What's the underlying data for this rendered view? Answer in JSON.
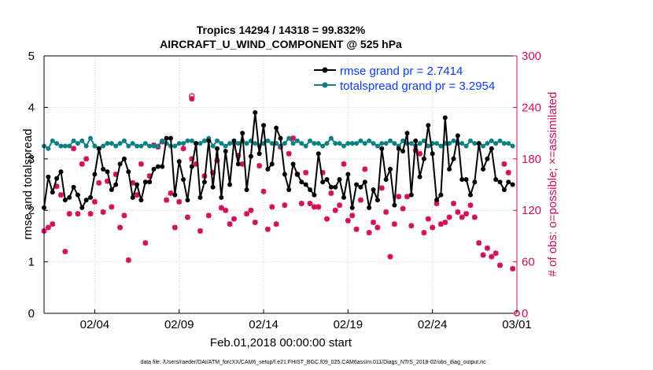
{
  "chart_data": {
    "type": "line",
    "title_line1": "Tropics 14294 / 14318 = 99.832%",
    "title_line2": "AIRCRAFT_U_WIND_COMPONENT @ 525 hPa",
    "ylabel_left": "rmse and totalspread",
    "ylabel_right": "# of obs: o=possible; ×=assimilated",
    "xlabel": "Feb.01,2018 00:00:00 start",
    "footnote": "data file: /Users/raeder/DAI/ATM_forcXX/CAM6_setup/f.e21.FHIST_BGC.f09_025.CAM6assim.011/Diags_NTrS_2018-02/obs_diag_output.nc",
    "xlim": [
      0.5,
      28.5
    ],
    "ylim_left": [
      0,
      5
    ],
    "ylim_right": [
      0,
      300
    ],
    "yticks_left": [
      "0",
      "1",
      "2",
      "3",
      "4",
      "5"
    ],
    "yticks_right": [
      "0",
      "60",
      "120",
      "180",
      "240",
      "300"
    ],
    "xticks": [
      {
        "x": 3.5,
        "label": "02/04"
      },
      {
        "x": 8.5,
        "label": "02/09"
      },
      {
        "x": 13.5,
        "label": "02/14"
      },
      {
        "x": 18.5,
        "label": "02/19"
      },
      {
        "x": 23.5,
        "label": "02/24"
      },
      {
        "x": 28.5,
        "label": "03/01"
      }
    ],
    "colors": {
      "rmse": "#000000",
      "spread": "#0f8080",
      "obs": "#d0105a",
      "right_axis": "#d0105a",
      "legend_text": "#0a3cf0"
    },
    "series": [
      {
        "name": "rmse grand pr = 2.7414",
        "color": "#000000",
        "x": [
          0.5,
          0.75,
          1.0,
          1.25,
          1.5,
          1.75,
          2.0,
          2.25,
          2.5,
          2.75,
          3.0,
          3.25,
          3.5,
          3.75,
          4.0,
          4.25,
          4.5,
          4.75,
          5.0,
          5.25,
          5.5,
          5.75,
          6.0,
          6.25,
          6.5,
          6.75,
          7.0,
          7.25,
          7.5,
          7.75,
          8.0,
          8.25,
          8.5,
          8.75,
          9.0,
          9.25,
          9.5,
          9.75,
          10.0,
          10.25,
          10.5,
          10.75,
          11.0,
          11.25,
          11.5,
          11.75,
          12.0,
          12.25,
          12.5,
          12.75,
          13.0,
          13.25,
          13.5,
          13.75,
          14.0,
          14.25,
          14.5,
          14.75,
          15.0,
          15.25,
          15.5,
          15.75,
          16.0,
          16.25,
          16.5,
          16.75,
          17.0,
          17.25,
          17.5,
          17.75,
          18.0,
          18.25,
          18.5,
          18.75,
          19.0,
          19.25,
          19.5,
          19.75,
          20.0,
          20.25,
          20.5,
          20.75,
          21.0,
          21.25,
          21.5,
          21.75,
          22.0,
          22.25,
          22.5,
          22.75,
          23.0,
          23.25,
          23.5,
          23.75,
          24.0,
          24.25,
          24.5,
          24.75,
          25.0,
          25.25,
          25.5,
          25.75,
          26.0,
          26.25,
          26.5,
          26.75,
          27.0,
          27.25,
          27.5,
          27.75,
          28.0,
          28.25
        ],
        "values": [
          2.05,
          2.65,
          2.35,
          2.62,
          2.75,
          2.2,
          2.25,
          2.45,
          2.3,
          2.05,
          2.2,
          2.25,
          2.7,
          3.2,
          2.8,
          2.75,
          2.4,
          2.5,
          2.9,
          3.0,
          2.75,
          2.25,
          2.5,
          2.2,
          2.55,
          2.55,
          2.8,
          2.85,
          2.85,
          3.4,
          3.4,
          2.3,
          2.95,
          2.6,
          2.2,
          2.85,
          3.3,
          2.25,
          2.55,
          3.35,
          2.45,
          3.2,
          2.25,
          3.15,
          2.5,
          3.35,
          2.9,
          3.5,
          2.4,
          3.05,
          3.9,
          3.1,
          3.65,
          2.8,
          2.9,
          3.6,
          3.4,
          2.7,
          2.4,
          2.9,
          2.7,
          2.55,
          2.5,
          2.4,
          2.3,
          3.1,
          2.55,
          2.6,
          2.45,
          2.45,
          2.6,
          2.25,
          2.7,
          2.05,
          2.5,
          2.45,
          2.55,
          2.05,
          2.4,
          2.2,
          3.2,
          2.6,
          2.8,
          2.1,
          3.2,
          3.15,
          3.5,
          2.3,
          3.35,
          2.65,
          3.0,
          3.65,
          3.1,
          2.2,
          2.3,
          3.8,
          2.8,
          3.0,
          3.45,
          2.6,
          2.6,
          2.3,
          2.55,
          3.3,
          2.8,
          3.0,
          3.2,
          2.6,
          2.55,
          2.4,
          2.55,
          2.5
        ]
      },
      {
        "name": "totalspread grand pr = 3.2954",
        "color": "#0f8080",
        "x": [
          0.5,
          0.75,
          1.0,
          1.25,
          1.5,
          1.75,
          2.0,
          2.25,
          2.5,
          2.75,
          3.0,
          3.25,
          3.5,
          3.75,
          4.0,
          4.25,
          4.5,
          4.75,
          5.0,
          5.25,
          5.5,
          5.75,
          6.0,
          6.25,
          6.5,
          6.75,
          7.0,
          7.25,
          7.5,
          7.75,
          8.0,
          8.25,
          8.5,
          8.75,
          9.0,
          9.25,
          9.5,
          9.75,
          10.0,
          10.25,
          10.5,
          10.75,
          11.0,
          11.25,
          11.5,
          11.75,
          12.0,
          12.25,
          12.5,
          12.75,
          13.0,
          13.25,
          13.5,
          13.75,
          14.0,
          14.25,
          14.5,
          14.75,
          15.0,
          15.25,
          15.5,
          15.75,
          16.0,
          16.25,
          16.5,
          16.75,
          17.0,
          17.25,
          17.5,
          17.75,
          18.0,
          18.25,
          18.5,
          18.75,
          19.0,
          19.25,
          19.5,
          19.75,
          20.0,
          20.25,
          20.5,
          20.75,
          21.0,
          21.25,
          21.5,
          21.75,
          22.0,
          22.25,
          22.5,
          22.75,
          23.0,
          23.25,
          23.5,
          23.75,
          24.0,
          24.25,
          24.5,
          24.75,
          25.0,
          25.25,
          25.5,
          25.75,
          26.0,
          26.25,
          26.5,
          26.75,
          27.0,
          27.25,
          27.5,
          27.75,
          28.0,
          28.25
        ],
        "values": [
          3.25,
          3.2,
          3.35,
          3.3,
          3.25,
          3.25,
          3.25,
          3.35,
          3.3,
          3.35,
          3.25,
          3.4,
          3.25,
          3.2,
          3.25,
          3.3,
          3.3,
          3.25,
          3.3,
          3.35,
          3.25,
          3.3,
          3.25,
          3.25,
          3.3,
          3.25,
          3.25,
          3.25,
          3.35,
          3.3,
          3.25,
          3.25,
          3.3,
          3.3,
          3.35,
          3.35,
          3.3,
          3.3,
          3.35,
          3.4,
          3.25,
          3.35,
          3.3,
          3.25,
          3.3,
          3.3,
          3.3,
          3.35,
          3.3,
          3.35,
          3.3,
          3.25,
          3.3,
          3.35,
          3.3,
          3.3,
          3.25,
          3.3,
          3.4,
          3.3,
          3.35,
          3.3,
          3.25,
          3.35,
          3.3,
          3.3,
          3.25,
          3.3,
          3.4,
          3.3,
          3.3,
          3.25,
          3.3,
          3.3,
          3.3,
          3.35,
          3.3,
          3.35,
          3.3,
          3.25,
          3.3,
          3.3,
          3.35,
          3.3,
          3.25,
          3.35,
          3.3,
          3.3,
          3.25,
          3.3,
          3.35,
          3.25,
          3.3,
          3.3,
          3.25,
          3.3,
          3.3,
          3.35,
          3.3,
          3.3,
          3.25,
          3.35,
          3.3,
          3.3,
          3.25,
          3.3,
          3.35,
          3.3,
          3.35,
          3.3,
          3.3,
          3.25
        ]
      }
    ],
    "obs_assimilated": {
      "name": "assimilated obs count",
      "color": "#d0105a",
      "x": [
        0.5,
        0.75,
        1.0,
        1.25,
        1.5,
        1.75,
        2.0,
        2.25,
        2.5,
        2.75,
        3.0,
        3.25,
        3.5,
        3.75,
        4.0,
        4.25,
        4.5,
        4.75,
        5.0,
        5.25,
        5.5,
        5.75,
        6.0,
        6.25,
        6.5,
        6.75,
        7.0,
        7.25,
        7.5,
        7.75,
        8.0,
        8.25,
        8.5,
        8.75,
        9.0,
        9.25,
        9.5,
        9.75,
        10.0,
        10.25,
        10.5,
        10.75,
        11.0,
        11.25,
        11.5,
        11.75,
        12.0,
        12.25,
        12.5,
        12.75,
        13.0,
        13.25,
        13.5,
        13.75,
        14.0,
        14.25,
        14.5,
        14.75,
        15.0,
        15.25,
        15.5,
        15.75,
        16.0,
        16.25,
        16.5,
        16.75,
        17.0,
        17.25,
        17.5,
        17.75,
        18.0,
        18.25,
        18.5,
        18.75,
        19.0,
        19.25,
        19.5,
        19.75,
        20.0,
        20.25,
        20.5,
        20.75,
        21.0,
        21.25,
        21.5,
        21.75,
        22.0,
        22.25,
        22.5,
        22.75,
        23.0,
        23.25,
        23.5,
        23.75,
        24.0,
        24.25,
        24.5,
        24.75,
        25.0,
        25.25,
        25.5,
        25.75,
        26.0,
        26.25,
        26.5,
        26.75,
        27.0,
        27.25,
        27.5,
        27.75,
        28.0,
        28.25
      ],
      "values": [
        96,
        100,
        104,
        148,
        138,
        72,
        116,
        192,
        116,
        174,
        180,
        116,
        130,
        152,
        118,
        154,
        124,
        162,
        100,
        114,
        62,
        152,
        138,
        174,
        82,
        160,
        196,
        194,
        200,
        132,
        140,
        100,
        130,
        192,
        112,
        180,
        174,
        96,
        160,
        114,
        164,
        178,
        123,
        120,
        104,
        110,
        184,
        174,
        116,
        120,
        106,
        172,
        142,
        98,
        124,
        104,
        194,
        126,
        186,
        204,
        162,
        128,
        164,
        128,
        124,
        124,
        164,
        110,
        140,
        120,
        126,
        174,
        108,
        114,
        98,
        132,
        168,
        94,
        106,
        100,
        146,
        118,
        66,
        104,
        136,
        122,
        136,
        102,
        190,
        186,
        94,
        110,
        100,
        128,
        104,
        106,
        112,
        128,
        118,
        112,
        116,
        126,
        112,
        82,
        68,
        76,
        66,
        70,
        56,
        174,
        164,
        52
      ]
    },
    "outlier_marker": {
      "x": 9.25,
      "value": 250,
      "possible": 253
    }
  }
}
